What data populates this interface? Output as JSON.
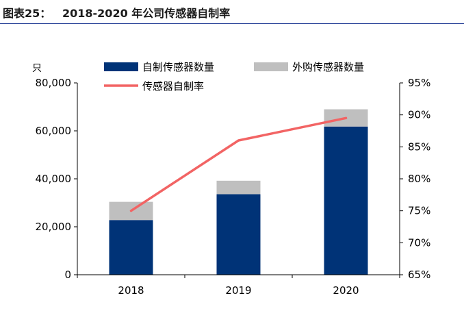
{
  "figure": {
    "label": "图表25：",
    "title": "2018-2020 年公司传感器自制率"
  },
  "colors": {
    "self_made": "#003377",
    "purchased": "#bfbfbf",
    "rate_line": "#f26464",
    "title_rule": "#1f3a93"
  },
  "chart_data": {
    "type": "bar",
    "stacked": true,
    "categories": [
      "2018",
      "2019",
      "2020"
    ],
    "series": [
      {
        "name": "自制传感器数量",
        "kind": "bar",
        "axis": "left",
        "values": [
          22800,
          33600,
          61800
        ]
      },
      {
        "name": "外购传感器数量",
        "kind": "bar",
        "axis": "left",
        "values": [
          7600,
          5600,
          7200
        ]
      },
      {
        "name": "传感器自制率",
        "kind": "line",
        "axis": "right",
        "values": [
          0.75,
          0.86,
          0.895
        ]
      }
    ],
    "y_left": {
      "unit": "只",
      "range": [
        0,
        80000
      ],
      "ticks": [
        0,
        20000,
        40000,
        60000,
        80000
      ],
      "tick_labels": [
        "0",
        "20,000",
        "40,000",
        "60,000",
        "80,000"
      ]
    },
    "y_right": {
      "range": [
        0.65,
        0.95
      ],
      "ticks": [
        0.65,
        0.7,
        0.75,
        0.8,
        0.85,
        0.9,
        0.95
      ],
      "tick_labels": [
        "65%",
        "70%",
        "75%",
        "80%",
        "85%",
        "90%",
        "95%"
      ]
    },
    "legend_position": "top",
    "grid": false
  }
}
